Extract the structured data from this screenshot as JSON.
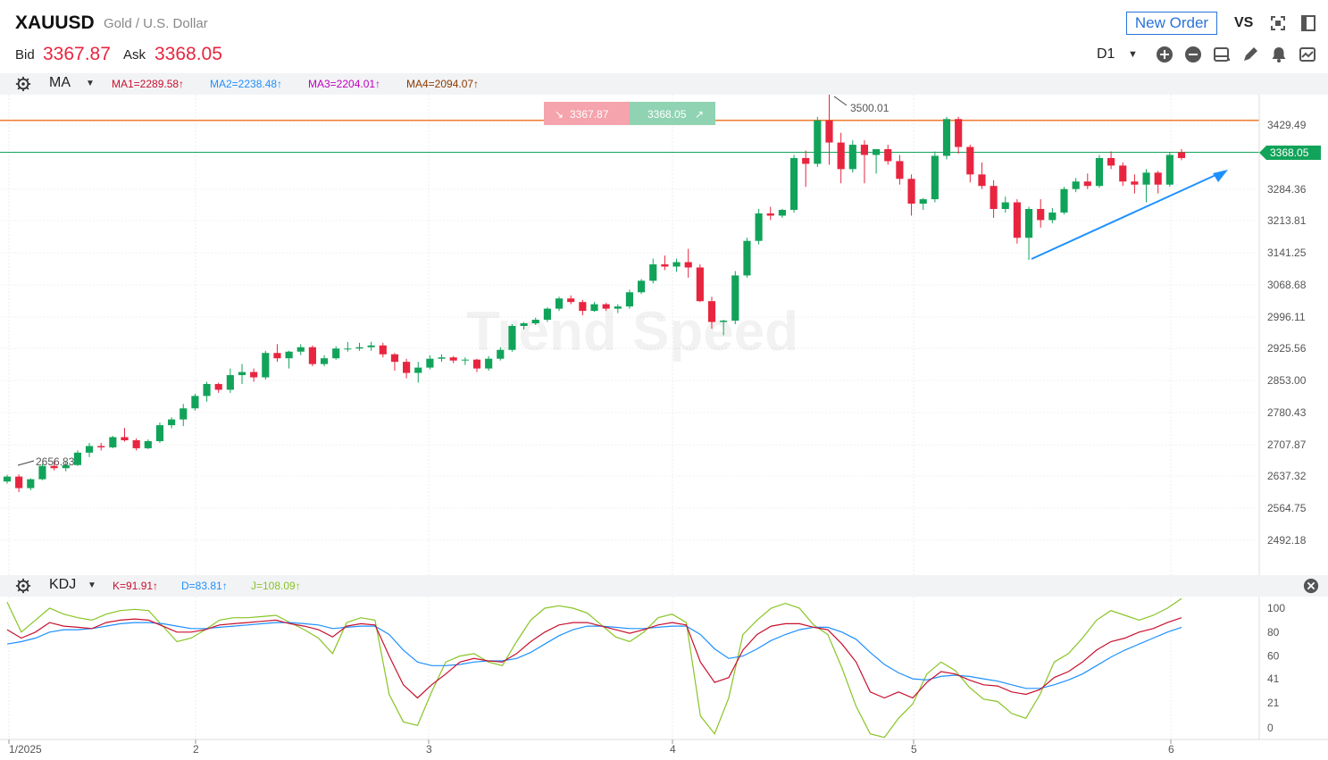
{
  "header": {
    "symbol": "XAUUSD",
    "description": "Gold / U.S. Dollar",
    "bid_label": "Bid",
    "bid_value": "3367.87",
    "ask_label": "Ask",
    "ask_value": "3368.05",
    "new_order_label": "New Order",
    "vs_label": "VS",
    "period": "D1",
    "icons": [
      "fullscreen-icon",
      "window-icon",
      "zoom-in-icon",
      "zoom-out-icon",
      "chart-type-icon",
      "draw-pencil-icon",
      "alert-bell-icon",
      "indicator-icon"
    ]
  },
  "ma_panel": {
    "name": "MA",
    "ma1": "MA1=2289.58↑",
    "ma2": "MA2=2238.48↑",
    "ma3": "MA3=2204.01↑",
    "ma4": "MA4=2094.07↑",
    "colors": {
      "ma1": "#c8102e",
      "ma2": "#1e90ff",
      "ma3": "#c000c0",
      "ma4": "#8b3a00"
    }
  },
  "kdj_panel": {
    "name": "KDJ",
    "k": "K=91.91↑",
    "d": "D=83.81↑",
    "j": "J=108.09↑",
    "colors": {
      "k": "#c8102e",
      "d": "#1e90ff",
      "j": "#88c425"
    }
  },
  "quote_box": {
    "bid": "3367.87",
    "ask": "3368.05"
  },
  "watermark": "Trend Speed",
  "chart_data": {
    "type": "candlestick",
    "up_color": "#12a35a",
    "down_color": "#e8253f",
    "y_ticks": [
      "3429.49",
      "3284.36",
      "3213.81",
      "3141.25",
      "3068.68",
      "2996.11",
      "2925.56",
      "2853.00",
      "2780.43",
      "2707.87",
      "2637.32",
      "2564.75",
      "2492.18"
    ],
    "current_price_label": "3368.05",
    "annotations": {
      "high": "3500.01",
      "low": "2656.83"
    },
    "horizontal_lines": [
      3500,
      3440
    ],
    "x_labels": [
      "1/2025",
      "2",
      "3",
      "4",
      "5",
      "6"
    ],
    "candles": [
      [
        2625,
        2640,
        2620,
        2636
      ],
      [
        2636,
        2641,
        2601,
        2610
      ],
      [
        2610,
        2632,
        2605,
        2630
      ],
      [
        2630,
        2665,
        2628,
        2660
      ],
      [
        2660,
        2672,
        2650,
        2655
      ],
      [
        2655,
        2670,
        2648,
        2662
      ],
      [
        2662,
        2695,
        2660,
        2690
      ],
      [
        2690,
        2712,
        2680,
        2705
      ],
      [
        2705,
        2712,
        2695,
        2702
      ],
      [
        2702,
        2728,
        2700,
        2725
      ],
      [
        2725,
        2746,
        2715,
        2718
      ],
      [
        2718,
        2722,
        2695,
        2700
      ],
      [
        2700,
        2720,
        2698,
        2716
      ],
      [
        2716,
        2758,
        2712,
        2752
      ],
      [
        2752,
        2770,
        2745,
        2765
      ],
      [
        2765,
        2800,
        2750,
        2790
      ],
      [
        2790,
        2823,
        2785,
        2818
      ],
      [
        2818,
        2850,
        2805,
        2845
      ],
      [
        2845,
        2848,
        2825,
        2832
      ],
      [
        2832,
        2880,
        2825,
        2865
      ],
      [
        2865,
        2890,
        2845,
        2872
      ],
      [
        2872,
        2880,
        2850,
        2860
      ],
      [
        2860,
        2920,
        2855,
        2915
      ],
      [
        2915,
        2935,
        2895,
        2903
      ],
      [
        2903,
        2920,
        2880,
        2918
      ],
      [
        2918,
        2935,
        2910,
        2928
      ],
      [
        2928,
        2932,
        2885,
        2890
      ],
      [
        2890,
        2910,
        2885,
        2903
      ],
      [
        2903,
        2930,
        2900,
        2925
      ],
      [
        2925,
        2940,
        2918,
        2925
      ],
      [
        2925,
        2938,
        2920,
        2928
      ],
      [
        2928,
        2940,
        2920,
        2932
      ],
      [
        2932,
        2938,
        2905,
        2912
      ],
      [
        2912,
        2915,
        2875,
        2895
      ],
      [
        2895,
        2902,
        2858,
        2870
      ],
      [
        2870,
        2895,
        2848,
        2882
      ],
      [
        2882,
        2910,
        2878,
        2902
      ],
      [
        2902,
        2912,
        2895,
        2905
      ],
      [
        2905,
        2908,
        2892,
        2898
      ],
      [
        2898,
        2905,
        2888,
        2900
      ],
      [
        2900,
        2902,
        2872,
        2880
      ],
      [
        2880,
        2908,
        2875,
        2902
      ],
      [
        2902,
        2928,
        2898,
        2922
      ],
      [
        2922,
        2980,
        2918,
        2976
      ],
      [
        2976,
        2985,
        2968,
        2982
      ],
      [
        2982,
        2995,
        2978,
        2990
      ],
      [
        2990,
        3018,
        2985,
        3015
      ],
      [
        3015,
        3042,
        3010,
        3038
      ],
      [
        3038,
        3045,
        3025,
        3030
      ],
      [
        3030,
        3035,
        3000,
        3010
      ],
      [
        3010,
        3030,
        3008,
        3025
      ],
      [
        3025,
        3028,
        3010,
        3015
      ],
      [
        3015,
        3025,
        3005,
        3020
      ],
      [
        3020,
        3058,
        3015,
        3052
      ],
      [
        3052,
        3082,
        3048,
        3078
      ],
      [
        3078,
        3128,
        3072,
        3115
      ],
      [
        3115,
        3135,
        3102,
        3110
      ],
      [
        3110,
        3128,
        3098,
        3120
      ],
      [
        3120,
        3150,
        3085,
        3108
      ],
      [
        3108,
        3115,
        3030,
        3032
      ],
      [
        3032,
        3042,
        2970,
        2985
      ],
      [
        2985,
        2990,
        2955,
        2988
      ],
      [
        2988,
        3100,
        2980,
        3090
      ],
      [
        3090,
        3175,
        3085,
        3168
      ],
      [
        3168,
        3240,
        3160,
        3230
      ],
      [
        3230,
        3245,
        3215,
        3225
      ],
      [
        3225,
        3240,
        3220,
        3238
      ],
      [
        3238,
        3362,
        3232,
        3355
      ],
      [
        3355,
        3372,
        3290,
        3342
      ],
      [
        3342,
        3448,
        3335,
        3440
      ],
      [
        3440,
        3500,
        3340,
        3390
      ],
      [
        3390,
        3412,
        3298,
        3330
      ],
      [
        3330,
        3395,
        3322,
        3385
      ],
      [
        3385,
        3395,
        3298,
        3362
      ],
      [
        3362,
        3375,
        3320,
        3375
      ],
      [
        3375,
        3385,
        3340,
        3348
      ],
      [
        3348,
        3362,
        3295,
        3308
      ],
      [
        3308,
        3318,
        3225,
        3252
      ],
      [
        3252,
        3265,
        3238,
        3262
      ],
      [
        3262,
        3370,
        3255,
        3360
      ],
      [
        3360,
        3448,
        3352,
        3443
      ],
      [
        3443,
        3448,
        3365,
        3380
      ],
      [
        3380,
        3385,
        3300,
        3318
      ],
      [
        3318,
        3345,
        3285,
        3292
      ],
      [
        3292,
        3305,
        3220,
        3240
      ],
      [
        3240,
        3268,
        3232,
        3255
      ],
      [
        3255,
        3262,
        3162,
        3175
      ],
      [
        3175,
        3245,
        3125,
        3240
      ],
      [
        3240,
        3262,
        3198,
        3215
      ],
      [
        3215,
        3242,
        3208,
        3232
      ],
      [
        3232,
        3290,
        3228,
        3285
      ],
      [
        3285,
        3310,
        3278,
        3302
      ],
      [
        3302,
        3320,
        3285,
        3292
      ],
      [
        3292,
        3362,
        3288,
        3355
      ],
      [
        3355,
        3370,
        3330,
        3338
      ],
      [
        3338,
        3345,
        3292,
        3302
      ],
      [
        3302,
        3318,
        3275,
        3295
      ],
      [
        3295,
        3330,
        3255,
        3322
      ],
      [
        3322,
        3326,
        3275,
        3295
      ],
      [
        3295,
        3368,
        3290,
        3362
      ],
      [
        3368,
        3375,
        3350,
        3355
      ]
    ],
    "kdj": {
      "k": [
        82,
        75,
        80,
        88,
        85,
        84,
        83,
        88,
        90,
        91,
        90,
        85,
        80,
        80,
        82,
        86,
        87,
        88,
        89,
        90,
        87,
        85,
        82,
        76,
        85,
        87,
        86,
        60,
        36,
        25,
        36,
        45,
        55,
        58,
        56,
        55,
        62,
        72,
        80,
        86,
        88,
        88,
        85,
        82,
        79,
        82,
        86,
        88,
        86,
        55,
        38,
        42,
        65,
        78,
        85,
        87,
        87,
        84,
        82,
        70,
        55,
        30,
        25,
        30,
        25,
        38,
        47,
        45,
        40,
        36,
        35,
        30,
        28,
        32,
        42,
        47,
        55,
        65,
        72,
        75,
        80,
        83,
        88,
        92
      ],
      "d": [
        70,
        72,
        75,
        80,
        82,
        82,
        83,
        85,
        87,
        88,
        88,
        87,
        85,
        83,
        83,
        84,
        85,
        86,
        87,
        88,
        88,
        87,
        86,
        83,
        84,
        85,
        85,
        78,
        65,
        55,
        52,
        52,
        53,
        55,
        56,
        56,
        58,
        63,
        70,
        77,
        82,
        85,
        85,
        84,
        83,
        83,
        84,
        85,
        85,
        78,
        66,
        58,
        60,
        66,
        73,
        78,
        82,
        84,
        84,
        80,
        74,
        63,
        53,
        46,
        41,
        40,
        43,
        44,
        43,
        41,
        39,
        36,
        33,
        33,
        36,
        40,
        45,
        52,
        59,
        65,
        70,
        75,
        80,
        84
      ],
      "j": [
        105,
        80,
        90,
        100,
        95,
        92,
        90,
        95,
        98,
        99,
        98,
        85,
        72,
        75,
        82,
        90,
        92,
        92,
        93,
        94,
        88,
        82,
        75,
        62,
        88,
        92,
        90,
        28,
        5,
        2,
        30,
        55,
        60,
        62,
        55,
        52,
        72,
        90,
        100,
        102,
        100,
        96,
        86,
        76,
        72,
        80,
        92,
        95,
        88,
        10,
        -5,
        25,
        78,
        90,
        100,
        104,
        100,
        86,
        78,
        50,
        18,
        -5,
        -8,
        8,
        20,
        45,
        55,
        48,
        34,
        24,
        22,
        12,
        8,
        28,
        55,
        62,
        75,
        90,
        98,
        94,
        90,
        94,
        100,
        108
      ]
    },
    "kdj_y_ticks": [
      "100",
      "80",
      "60",
      "41",
      "21",
      "0"
    ]
  }
}
